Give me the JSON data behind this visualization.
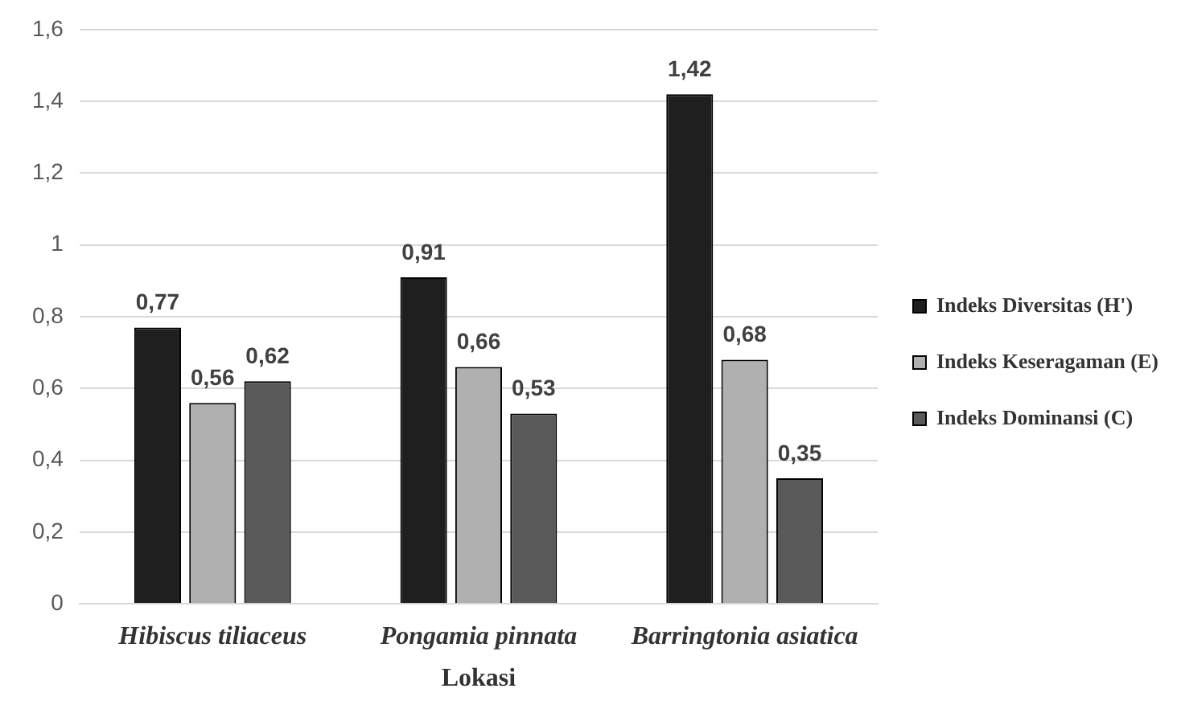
{
  "chart_data": {
    "type": "bar",
    "xlabel": "Lokasi",
    "categories": [
      "Hibiscus tiliaceus",
      "Pongamia pinnata",
      "Barringtonia asiatica"
    ],
    "series": [
      {
        "name": "Indeks Diversitas (H')",
        "color": "#1f1f1f",
        "values": [
          0.77,
          0.91,
          1.42
        ],
        "value_labels": [
          "0,77",
          "0,91",
          "1,42"
        ]
      },
      {
        "name": "Indeks Keseragaman (E)",
        "color": "#b0b0b0",
        "values": [
          0.56,
          0.66,
          0.68
        ],
        "value_labels": [
          "0,56",
          "0,66",
          "0,68"
        ]
      },
      {
        "name": "Indeks Dominansi (C)",
        "color": "#5a5a5a",
        "values": [
          0.62,
          0.53,
          0.35
        ],
        "value_labels": [
          "0,62",
          "0,53",
          "0,35"
        ]
      }
    ],
    "ylim": [
      0,
      1.6
    ],
    "yticks": [
      0,
      {
        "value": 0.2,
        "label": "0,2"
      },
      {
        "value": 0.4,
        "label": "0,4"
      },
      {
        "value": 0.6,
        "label": "0,6"
      },
      {
        "value": 0.8,
        "label": "0,8"
      },
      1,
      {
        "value": 1.2,
        "label": "1,2"
      },
      {
        "value": 1.4,
        "label": "1,4"
      },
      {
        "value": 1.6,
        "label": "1,6"
      }
    ],
    "grid": "y",
    "legend": "right"
  }
}
